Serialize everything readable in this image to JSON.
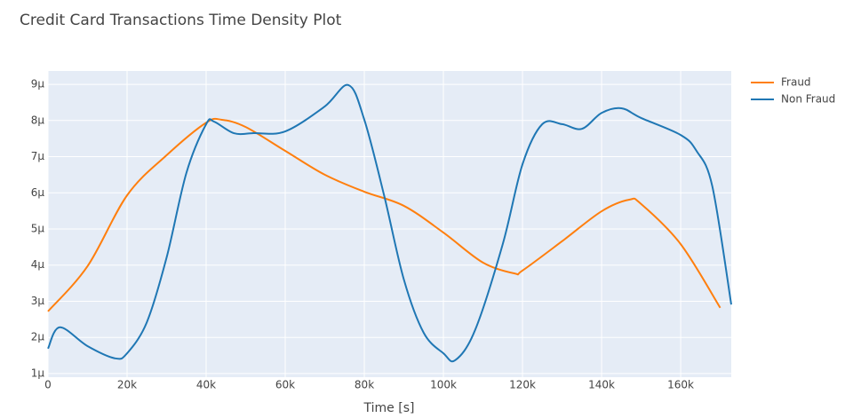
{
  "chart_data": {
    "type": "line",
    "title": "Credit Card Transactions Time Density Plot",
    "x_label": "Time [s]",
    "xlim": [
      0,
      172792
    ],
    "xticks": [
      0,
      {
        "value": 20000,
        "label": "20k"
      },
      {
        "value": 40000,
        "label": "40k"
      },
      {
        "value": 60000,
        "label": "60k"
      },
      {
        "value": 80000,
        "label": "80k"
      },
      {
        "value": 100000,
        "label": "100k"
      },
      {
        "value": 120000,
        "label": "120k"
      },
      {
        "value": 140000,
        "label": "140k"
      },
      {
        "value": 160000,
        "label": "160k"
      }
    ],
    "ylim": [
      9e-07,
      9.37e-06
    ],
    "yticks": [
      {
        "value": 1e-06,
        "label": "1μ"
      },
      {
        "value": 2e-06,
        "label": "2μ"
      },
      {
        "value": 3e-06,
        "label": "3μ"
      },
      {
        "value": 4e-06,
        "label": "4μ"
      },
      {
        "value": 5e-06,
        "label": "5μ"
      },
      {
        "value": 6e-06,
        "label": "6μ"
      },
      {
        "value": 7e-06,
        "label": "7μ"
      },
      {
        "value": 8e-06,
        "label": "8μ"
      },
      {
        "value": 9e-06,
        "label": "9μ"
      }
    ],
    "grid": true,
    "legend": "right",
    "series": [
      {
        "name": "Fraud",
        "color": "#ff7f0e",
        "x": [
          0,
          10000,
          20000,
          30000,
          40000,
          44000,
          50000,
          60000,
          70000,
          80000,
          90000,
          100000,
          110000,
          118000,
          120000,
          130000,
          140000,
          147000,
          150000,
          160000,
          170000
        ],
        "values": [
          2.72e-06,
          3.97e-06,
          5.93e-06,
          7.04e-06,
          7.94e-06,
          8.02e-06,
          7.82e-06,
          7.16e-06,
          6.5e-06,
          6.03e-06,
          5.64e-06,
          4.9e-06,
          4.07e-06,
          3.77e-06,
          3.85e-06,
          4.66e-06,
          5.49e-06,
          5.81e-06,
          5.69e-06,
          4.58e-06,
          2.82e-06
        ]
      },
      {
        "name": "Non Fraud",
        "color": "#1f77b4",
        "x": [
          0,
          3000,
          10000,
          17000,
          20000,
          25000,
          30000,
          35000,
          40000,
          42000,
          47000,
          52000,
          60000,
          70000,
          76000,
          80000,
          85000,
          90000,
          95000,
          100000,
          103000,
          108000,
          115000,
          120000,
          125000,
          130000,
          135000,
          140000,
          145000,
          150000,
          160000,
          164000,
          168000,
          172792
        ],
        "values": [
          1.69e-06,
          2.28e-06,
          1.76e-06,
          1.42e-06,
          1.56e-06,
          2.42e-06,
          4.21e-06,
          6.55e-06,
          7.9e-06,
          7.97e-06,
          7.65e-06,
          7.65e-06,
          7.7e-06,
          8.39e-06,
          8.98e-06,
          8.02e-06,
          5.93e-06,
          3.6e-06,
          2.13e-06,
          1.56e-06,
          1.37e-06,
          2.2e-06,
          4.58e-06,
          6.79e-06,
          7.9e-06,
          7.9e-06,
          7.77e-06,
          8.21e-06,
          8.34e-06,
          8.07e-06,
          7.6e-06,
          7.16e-06,
          6.18e-06,
          2.91e-06
        ]
      }
    ]
  }
}
